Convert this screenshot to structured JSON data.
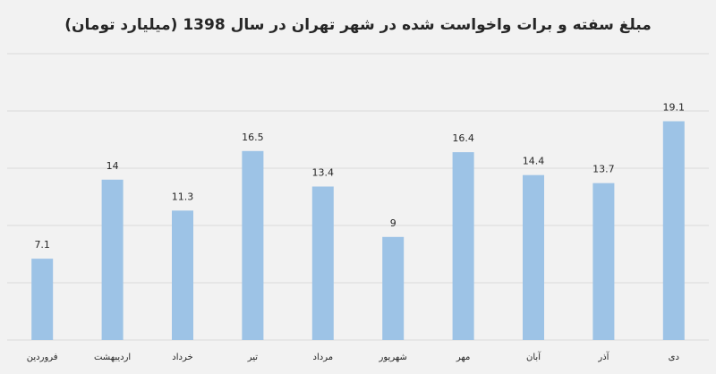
{
  "chart_data": {
    "type": "bar",
    "title": "مبلغ سفته و برات واخواست شده در شهر تهران در سال 1398 (میلیارد تومان)",
    "categories": [
      "فروردین",
      "اردیبهشت",
      "خرداد",
      "تیر",
      "مرداد",
      "شهریور",
      "مهر",
      "آبان",
      "آذر",
      "دی"
    ],
    "values": [
      7.1,
      14,
      11.3,
      16.5,
      13.4,
      9,
      16.4,
      14.4,
      13.7,
      19.1
    ],
    "value_labels": [
      "7.1",
      "14",
      "11.3",
      "16.5",
      "13.4",
      "9",
      "16.4",
      "14.4",
      "13.7",
      "19.1"
    ],
    "xlabel": "",
    "ylabel": "",
    "ylim": [
      0,
      25
    ],
    "grid": true,
    "bar_color": "#9dc3e6",
    "gridline_color": "#d9d9d9"
  }
}
